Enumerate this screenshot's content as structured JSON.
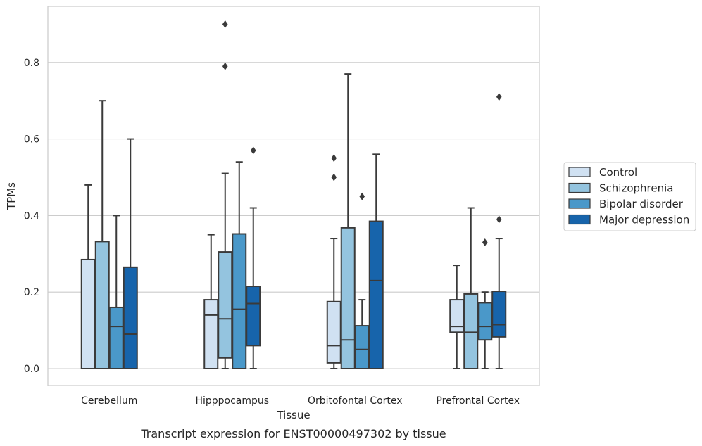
{
  "chart_data": {
    "type": "box",
    "title": "",
    "caption": "Transcript expression for ENST00000497302 by tissue",
    "xlabel": "Tissue",
    "ylabel": "TPMs",
    "ylim": [
      -0.045,
      0.945
    ],
    "yticks": [
      "0.0",
      "0.2",
      "0.4",
      "0.6",
      "0.8"
    ],
    "ytick_values": [
      0.0,
      0.2,
      0.4,
      0.6,
      0.8
    ],
    "grid": "horizontal",
    "legend_position": "right",
    "categories": [
      "Cerebellum",
      "Hipppocampus",
      "Orbitofontal Cortex",
      "Prefrontal Cortex"
    ],
    "series": [
      {
        "name": "Control",
        "color": "#d0e1f2",
        "boxes": [
          {
            "whislo": 0.0,
            "q1": 0.0,
            "med": 0.0,
            "q3": 0.285,
            "whishi": 0.48,
            "fliers": []
          },
          {
            "whislo": 0.0,
            "q1": 0.0,
            "med": 0.14,
            "q3": 0.18,
            "whishi": 0.35,
            "fliers": []
          },
          {
            "whislo": 0.0,
            "q1": 0.015,
            "med": 0.06,
            "q3": 0.175,
            "whishi": 0.34,
            "fliers": [
              0.5,
              0.55
            ]
          },
          {
            "whislo": 0.0,
            "q1": 0.095,
            "med": 0.11,
            "q3": 0.18,
            "whishi": 0.27,
            "fliers": []
          }
        ]
      },
      {
        "name": "Schizophrenia",
        "color": "#94c4df",
        "boxes": [
          {
            "whislo": 0.0,
            "q1": 0.0,
            "med": 0.0,
            "q3": 0.332,
            "whishi": 0.7,
            "fliers": []
          },
          {
            "whislo": 0.0,
            "q1": 0.028,
            "med": 0.13,
            "q3": 0.305,
            "whishi": 0.51,
            "fliers": [
              0.79,
              0.9
            ]
          },
          {
            "whislo": 0.0,
            "q1": 0.0,
            "med": 0.075,
            "q3": 0.368,
            "whishi": 0.77,
            "fliers": []
          },
          {
            "whislo": 0.0,
            "q1": 0.0,
            "med": 0.095,
            "q3": 0.195,
            "whishi": 0.42,
            "fliers": []
          }
        ]
      },
      {
        "name": "Bipolar disorder",
        "color": "#4a98c9",
        "boxes": [
          {
            "whislo": 0.0,
            "q1": 0.0,
            "med": 0.11,
            "q3": 0.16,
            "whishi": 0.4,
            "fliers": []
          },
          {
            "whislo": 0.0,
            "q1": 0.0,
            "med": 0.155,
            "q3": 0.352,
            "whishi": 0.54,
            "fliers": []
          },
          {
            "whislo": 0.0,
            "q1": 0.0,
            "med": 0.05,
            "q3": 0.112,
            "whishi": 0.18,
            "fliers": [
              0.45
            ]
          },
          {
            "whislo": 0.0,
            "q1": 0.075,
            "med": 0.11,
            "q3": 0.172,
            "whishi": 0.2,
            "fliers": [
              0.33
            ]
          }
        ]
      },
      {
        "name": "Major depression",
        "color": "#1764ab",
        "boxes": [
          {
            "whislo": 0.0,
            "q1": 0.0,
            "med": 0.09,
            "q3": 0.265,
            "whishi": 0.6,
            "fliers": []
          },
          {
            "whislo": 0.0,
            "q1": 0.06,
            "med": 0.17,
            "q3": 0.215,
            "whishi": 0.42,
            "fliers": [
              0.57
            ]
          },
          {
            "whislo": 0.0,
            "q1": 0.0,
            "med": 0.23,
            "q3": 0.385,
            "whishi": 0.56,
            "fliers": []
          },
          {
            "whislo": 0.0,
            "q1": 0.083,
            "med": 0.115,
            "q3": 0.202,
            "whishi": 0.34,
            "fliers": [
              0.39,
              0.71
            ]
          }
        ]
      }
    ]
  }
}
